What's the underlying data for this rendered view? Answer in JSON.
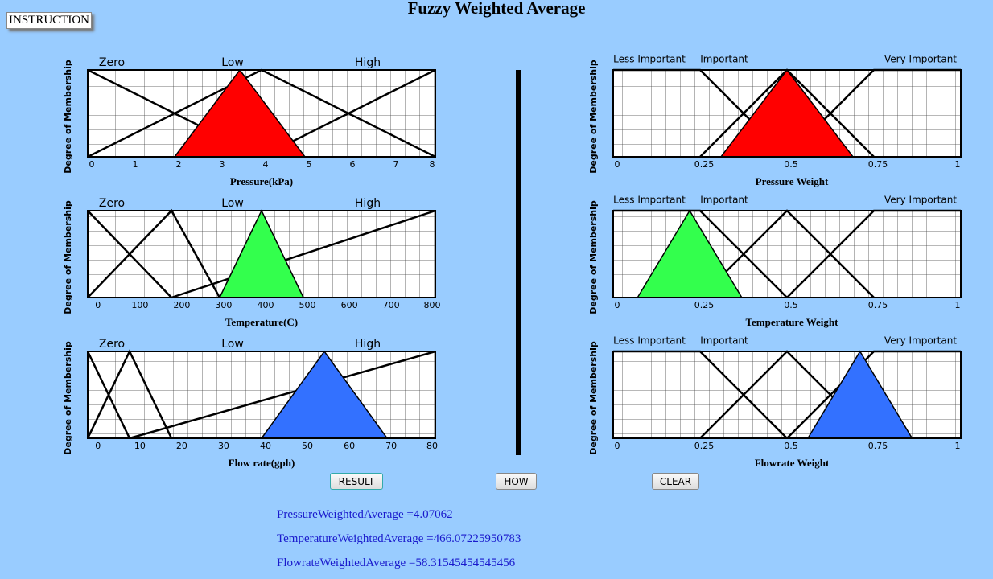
{
  "header": {
    "title": "Fuzzy Weighted Average",
    "instruction": "INSTRUCTION"
  },
  "charts": [
    {
      "type": "line",
      "y_label": "Degree of Membership",
      "x_label": "Pressure(kPa)",
      "xlim": [
        0,
        8
      ],
      "ylim": [
        0,
        1
      ],
      "xticks": [
        0,
        1,
        2,
        3,
        4,
        5,
        6,
        7,
        8
      ],
      "sets": [
        {
          "name": "Zero",
          "x": [
            0,
            4
          ],
          "y": [
            1,
            0
          ]
        },
        {
          "name": "Low",
          "x": [
            0,
            4,
            8
          ],
          "y": [
            0,
            1,
            0
          ]
        },
        {
          "name": "High",
          "x": [
            4,
            8
          ],
          "y": [
            0,
            1
          ]
        }
      ],
      "input": {
        "color": "#ff0000",
        "x": [
          2,
          3.5,
          5
        ],
        "y": [
          0,
          1,
          0
        ]
      }
    },
    {
      "type": "line",
      "y_label": "Degree of Membership",
      "x_label": "Temperature(C)",
      "xlim": [
        -15,
        815
      ],
      "ylim": [
        0,
        1
      ],
      "xticks": [
        0,
        100,
        200,
        300,
        400,
        500,
        600,
        700,
        800
      ],
      "sets": [
        {
          "name": "Zero",
          "x": [
            -15,
            185
          ],
          "y": [
            1,
            0
          ]
        },
        {
          "name": "Low",
          "x": [
            -15,
            185,
            300
          ],
          "y": [
            0,
            1,
            0
          ]
        },
        {
          "name": "High",
          "x": [
            185,
            815
          ],
          "y": [
            0,
            1
          ]
        }
      ],
      "input": {
        "color": "#33ff4d",
        "x": [
          300,
          400,
          500
        ],
        "y": [
          0,
          1,
          0
        ]
      }
    },
    {
      "type": "line",
      "y_label": "Degree of Membership",
      "x_label": "Flow rate(gph)",
      "xlim": [
        -1.5,
        81.5
      ],
      "ylim": [
        0,
        1
      ],
      "xticks": [
        0,
        10,
        20,
        30,
        40,
        50,
        60,
        70,
        80
      ],
      "sets": [
        {
          "name": "Zero",
          "x": [
            -1.5,
            8.5
          ],
          "y": [
            1,
            0
          ]
        },
        {
          "name": "Low",
          "x": [
            -1.5,
            8.5,
            18.5
          ],
          "y": [
            0,
            1,
            0
          ]
        },
        {
          "name": "High",
          "x": [
            8.5,
            81.5
          ],
          "y": [
            0,
            1
          ]
        }
      ],
      "input": {
        "color": "#3371ff",
        "x": [
          40,
          55,
          70
        ],
        "y": [
          0,
          1,
          0
        ]
      }
    },
    {
      "type": "line",
      "y_label": "Degree of Membership",
      "x_label": "Pressure Weight",
      "xlim": [
        0,
        1
      ],
      "ylim": [
        0,
        1
      ],
      "xticks": [
        0,
        0.25,
        0.5,
        0.75,
        1
      ],
      "sets": [
        {
          "name": "Less Important",
          "x": [
            0,
            0.25,
            0.5
          ],
          "y": [
            1,
            1,
            0
          ]
        },
        {
          "name": "Important",
          "x": [
            0.25,
            0.5,
            0.75
          ],
          "y": [
            0,
            1,
            0
          ]
        },
        {
          "name": "Very Important",
          "x": [
            0.5,
            0.75,
            1
          ],
          "y": [
            0,
            1,
            1
          ]
        }
      ],
      "input": {
        "color": "#ff0000",
        "x": [
          0.31,
          0.5,
          0.69
        ],
        "y": [
          0,
          1,
          0
        ]
      }
    },
    {
      "type": "line",
      "y_label": "Degree of Membership",
      "x_label": "Temperature Weight",
      "xlim": [
        0,
        1
      ],
      "ylim": [
        0,
        1
      ],
      "xticks": [
        0,
        0.25,
        0.5,
        0.75,
        1
      ],
      "sets": [
        {
          "name": "Less Important",
          "x": [
            0,
            0.25,
            0.5
          ],
          "y": [
            1,
            1,
            0
          ]
        },
        {
          "name": "Important",
          "x": [
            0.25,
            0.5,
            0.75
          ],
          "y": [
            0,
            1,
            0
          ]
        },
        {
          "name": "Very Important",
          "x": [
            0.5,
            0.75,
            1
          ],
          "y": [
            0,
            1,
            1
          ]
        }
      ],
      "input": {
        "color": "#33ff4d",
        "x": [
          0.07,
          0.22,
          0.37
        ],
        "y": [
          0,
          1,
          0
        ]
      }
    },
    {
      "type": "line",
      "y_label": "Degree of Membership",
      "x_label": "Flowrate Weight",
      "xlim": [
        0,
        1
      ],
      "ylim": [
        0,
        1
      ],
      "xticks": [
        0,
        0.25,
        0.5,
        0.75,
        1
      ],
      "sets": [
        {
          "name": "Less Important",
          "x": [
            0,
            0.25,
            0.5
          ],
          "y": [
            1,
            1,
            0
          ]
        },
        {
          "name": "Important",
          "x": [
            0.25,
            0.5,
            0.75
          ],
          "y": [
            0,
            1,
            0
          ]
        },
        {
          "name": "Very Important",
          "x": [
            0.5,
            0.75,
            1
          ],
          "y": [
            0,
            1,
            1
          ]
        }
      ],
      "input": {
        "color": "#3371ff",
        "x": [
          0.56,
          0.71,
          0.86
        ],
        "y": [
          0,
          1,
          0
        ]
      }
    }
  ],
  "buttons": [
    "RESULT",
    "HOW",
    "CLEAR"
  ],
  "results": [
    "PressureWeightedAverage =4.07062",
    "TemperatureWeightedAverage =466.07225950783",
    "FlowrateWeightedAverage =58.31545454545456"
  ]
}
